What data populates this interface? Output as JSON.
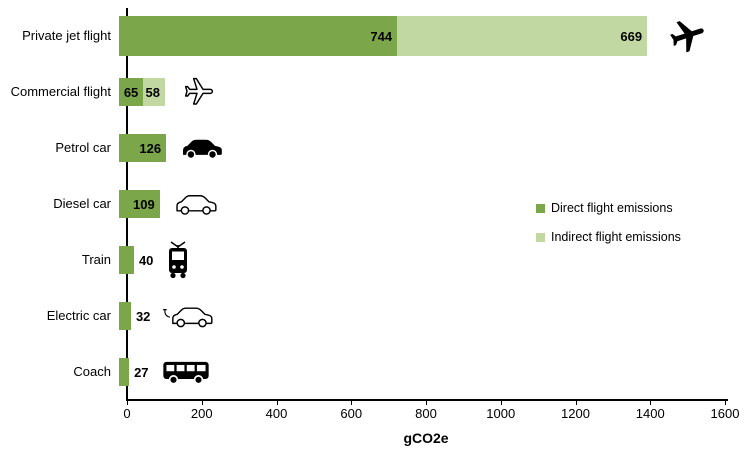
{
  "chart_data": {
    "type": "bar",
    "orientation": "horizontal",
    "stacked": true,
    "title": "",
    "xlabel": "gCO2e",
    "xlim": [
      0,
      1600
    ],
    "xticks": [
      0,
      200,
      400,
      600,
      800,
      1000,
      1200,
      1400,
      1600
    ],
    "grid": false,
    "legend_position": "middle-right",
    "categories": [
      "Private jet flight",
      "Commercial flight",
      "Petrol car",
      "Diesel car",
      "Train",
      "Electric car",
      "Coach"
    ],
    "series": [
      {
        "name": "Direct flight emissions",
        "color": "#7CA64A",
        "values": [
          744,
          65,
          126,
          109,
          40,
          32,
          27
        ]
      },
      {
        "name": "Indirect flight emissions",
        "color": "#C2D8A3",
        "values": [
          669,
          58,
          0,
          0,
          0,
          0,
          0
        ]
      }
    ],
    "icons": [
      "private-jet",
      "commercial-plane",
      "petrol-car",
      "diesel-car",
      "train",
      "electric-car",
      "coach-bus"
    ]
  },
  "legend": {
    "items": [
      {
        "label": "Direct flight emissions",
        "color": "#7CA64A"
      },
      {
        "label": "Indirect flight emissions",
        "color": "#C2D8A3"
      }
    ]
  },
  "axis": {
    "xlabel": "gCO2e"
  },
  "colors": {
    "direct": "#7CA64A",
    "indirect": "#C2D8A3",
    "axis": "#000000"
  }
}
